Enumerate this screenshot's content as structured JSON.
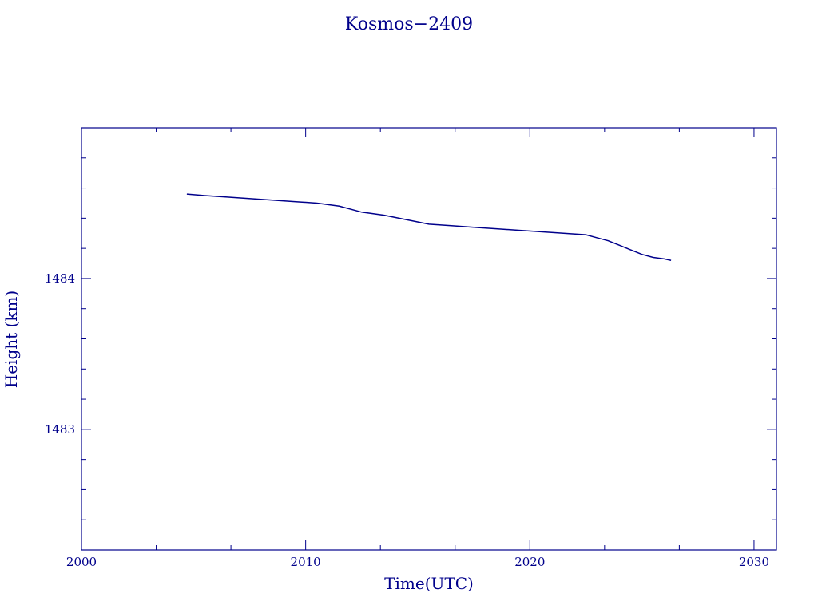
{
  "chart_data": {
    "type": "line",
    "title": "Kosmos−2409",
    "xlabel": "Time(UTC)",
    "ylabel": "Height (km)",
    "xlim": [
      2000,
      2031
    ],
    "ylim": [
      1482.2,
      1485.0
    ],
    "x_ticks": [
      2000,
      2010,
      2020,
      2030
    ],
    "x_tick_labels": [
      "2000",
      "2010",
      "2020",
      "2030"
    ],
    "y_ticks": [
      1483,
      1484
    ],
    "y_tick_labels": [
      "1483",
      "1484"
    ],
    "grid": false,
    "legend": "none",
    "color": "#00008b",
    "series": [
      {
        "x": [
          2004.7,
          2005.5,
          2006.5,
          2008.0,
          2009.5,
          2010.5,
          2011.5,
          2012.5,
          2013.5,
          2014.5,
          2015.5,
          2016.5,
          2017.5,
          2018.5,
          2019.5,
          2020.5,
          2021.5,
          2022.5,
          2023.0,
          2023.5,
          2024.0,
          2024.5,
          2025.0,
          2025.5,
          2026.0,
          2026.3
        ],
        "y": [
          1484.56,
          1484.55,
          1484.54,
          1484.525,
          1484.51,
          1484.5,
          1484.48,
          1484.44,
          1484.42,
          1484.39,
          1484.36,
          1484.35,
          1484.34,
          1484.33,
          1484.32,
          1484.31,
          1484.3,
          1484.29,
          1484.27,
          1484.25,
          1484.22,
          1484.19,
          1484.16,
          1484.14,
          1484.13,
          1484.12
        ]
      }
    ]
  }
}
